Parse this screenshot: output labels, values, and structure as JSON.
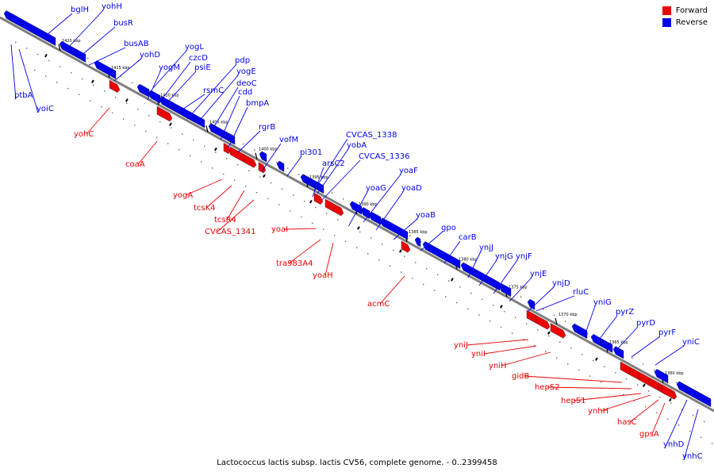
{
  "caption": "Lactococcus lactis subsp. lactis CV56, complete genome. - 0..2399458",
  "legend": [
    {
      "label": "Forward",
      "color": "#ee0000"
    },
    {
      "label": "Reverse",
      "color": "#0000ee"
    }
  ],
  "colors": {
    "forward": "#ee0000",
    "reverse": "#0000ee",
    "backbone": "#7f7f7f"
  },
  "ticks": [
    "1420 kbp",
    "1415 kbp",
    "1410 kbp",
    "1405 kbp",
    "1400 kbp",
    "1395 kbp",
    "1390 kbp",
    "1385 kbp",
    "1380 kbp",
    "1375 kbp",
    "1370 kbp",
    "1365 kbp",
    "1360 kbp"
  ],
  "genes": [
    {
      "name": "bglH",
      "strand": "reverse"
    },
    {
      "name": "yohH",
      "strand": "reverse"
    },
    {
      "name": "busR",
      "strand": "reverse"
    },
    {
      "name": "busAB",
      "strand": "reverse"
    },
    {
      "name": "yohD",
      "strand": "reverse"
    },
    {
      "name": "ptbA",
      "strand": "reverse"
    },
    {
      "name": "yoiC",
      "strand": "reverse"
    },
    {
      "name": "yogL",
      "strand": "reverse"
    },
    {
      "name": "yogM",
      "strand": "reverse"
    },
    {
      "name": "czcD",
      "strand": "reverse"
    },
    {
      "name": "psiE",
      "strand": "reverse"
    },
    {
      "name": "pdp",
      "strand": "reverse"
    },
    {
      "name": "yogE",
      "strand": "reverse"
    },
    {
      "name": "rsmC",
      "strand": "reverse"
    },
    {
      "name": "deoC",
      "strand": "reverse"
    },
    {
      "name": "cdd",
      "strand": "reverse"
    },
    {
      "name": "bmpA",
      "strand": "reverse"
    },
    {
      "name": "rgrB",
      "strand": "reverse"
    },
    {
      "name": "vofM",
      "strand": "reverse"
    },
    {
      "name": "pi301",
      "strand": "reverse"
    },
    {
      "name": "CVCAS_1338",
      "strand": "reverse"
    },
    {
      "name": "yobA",
      "strand": "reverse"
    },
    {
      "name": "arsC2",
      "strand": "reverse"
    },
    {
      "name": "CVCAS_1336",
      "strand": "reverse"
    },
    {
      "name": "yoaF",
      "strand": "reverse"
    },
    {
      "name": "yoaG",
      "strand": "reverse"
    },
    {
      "name": "yoaD",
      "strand": "reverse"
    },
    {
      "name": "yoaB",
      "strand": "reverse"
    },
    {
      "name": "gpo",
      "strand": "reverse"
    },
    {
      "name": "carB",
      "strand": "reverse"
    },
    {
      "name": "ynjJ",
      "strand": "reverse"
    },
    {
      "name": "ynjG",
      "strand": "reverse"
    },
    {
      "name": "ynjF",
      "strand": "reverse"
    },
    {
      "name": "ynjE",
      "strand": "reverse"
    },
    {
      "name": "ynjD",
      "strand": "reverse"
    },
    {
      "name": "rluC",
      "strand": "reverse"
    },
    {
      "name": "yniG",
      "strand": "reverse"
    },
    {
      "name": "pyrZ",
      "strand": "reverse"
    },
    {
      "name": "pyrD",
      "strand": "reverse"
    },
    {
      "name": "pyrF",
      "strand": "reverse"
    },
    {
      "name": "yniC",
      "strand": "reverse"
    },
    {
      "name": "ynhD",
      "strand": "reverse"
    },
    {
      "name": "ynhC",
      "strand": "reverse"
    },
    {
      "name": "yohC",
      "strand": "forward"
    },
    {
      "name": "coaA",
      "strand": "forward"
    },
    {
      "name": "yogA",
      "strand": "forward"
    },
    {
      "name": "tcsK4",
      "strand": "forward"
    },
    {
      "name": "tcsR4",
      "strand": "forward"
    },
    {
      "name": "CVCAS_1341",
      "strand": "forward"
    },
    {
      "name": "yoaI",
      "strand": "forward"
    },
    {
      "name": "tra983A4",
      "strand": "forward"
    },
    {
      "name": "yoaH",
      "strand": "forward"
    },
    {
      "name": "acmC",
      "strand": "forward"
    },
    {
      "name": "yniJ",
      "strand": "forward"
    },
    {
      "name": "yniI",
      "strand": "forward"
    },
    {
      "name": "yniH",
      "strand": "forward"
    },
    {
      "name": "gidB",
      "strand": "forward"
    },
    {
      "name": "hepS2",
      "strand": "forward"
    },
    {
      "name": "hepS1",
      "strand": "forward"
    },
    {
      "name": "ynhH",
      "strand": "forward"
    },
    {
      "name": "hasC",
      "strand": "forward"
    },
    {
      "name": "gpsA",
      "strand": "forward"
    }
  ]
}
